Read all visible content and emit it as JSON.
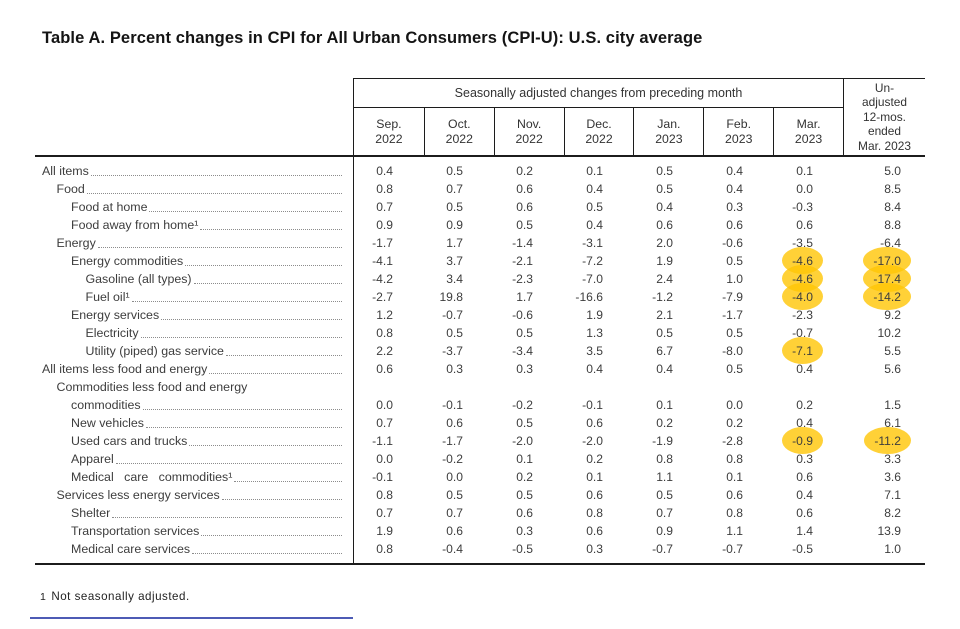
{
  "title": "Table A. Percent changes in CPI for All Urban Consumers (CPI-U): U.S. city average",
  "table": {
    "group_header": "Seasonally adjusted changes from preceding month",
    "month_columns": [
      [
        "Sep.",
        "2022"
      ],
      [
        "Oct.",
        "2022"
      ],
      [
        "Nov.",
        "2022"
      ],
      [
        "Dec.",
        "2022"
      ],
      [
        "Jan.",
        "2023"
      ],
      [
        "Feb.",
        "2023"
      ],
      [
        "Mar.",
        "2023"
      ]
    ],
    "last_column_lines": [
      "Un-",
      "adjusted",
      "12-mos.",
      "ended",
      "Mar. 2023"
    ],
    "rows": [
      {
        "label": "All items",
        "indent": 0,
        "values": [
          "0.4",
          "0.5",
          "0.2",
          "0.1",
          "0.5",
          "0.4",
          "0.1",
          "5.0"
        ],
        "highlight": []
      },
      {
        "label": "Food",
        "indent": 1,
        "values": [
          "0.8",
          "0.7",
          "0.6",
          "0.4",
          "0.5",
          "0.4",
          "0.0",
          "8.5"
        ],
        "highlight": []
      },
      {
        "label": "Food at home",
        "indent": 2,
        "values": [
          "0.7",
          "0.5",
          "0.6",
          "0.5",
          "0.4",
          "0.3",
          "-0.3",
          "8.4"
        ],
        "highlight": []
      },
      {
        "label": "Food away from home¹",
        "indent": 2,
        "values": [
          "0.9",
          "0.9",
          "0.5",
          "0.4",
          "0.6",
          "0.6",
          "0.6",
          "8.8"
        ],
        "highlight": []
      },
      {
        "label": "Energy",
        "indent": 1,
        "values": [
          "-1.7",
          "1.7",
          "-1.4",
          "-3.1",
          "2.0",
          "-0.6",
          "-3.5",
          "-6.4"
        ],
        "highlight": []
      },
      {
        "label": "Energy commodities",
        "indent": 2,
        "values": [
          "-4.1",
          "3.7",
          "-2.1",
          "-7.2",
          "1.9",
          "0.5",
          "-4.6",
          "-17.0"
        ],
        "highlight": [
          6,
          7
        ]
      },
      {
        "label": "Gasoline (all types)",
        "indent": 3,
        "values": [
          "-4.2",
          "3.4",
          "-2.3",
          "-7.0",
          "2.4",
          "1.0",
          "-4.6",
          "-17.4"
        ],
        "highlight": [
          6,
          7
        ]
      },
      {
        "label": "Fuel oil¹",
        "indent": 3,
        "values": [
          "-2.7",
          "19.8",
          "1.7",
          "-16.6",
          "-1.2",
          "-7.9",
          "-4.0",
          "-14.2"
        ],
        "highlight": [
          6,
          7
        ]
      },
      {
        "label": "Energy services",
        "indent": 2,
        "values": [
          "1.2",
          "-0.7",
          "-0.6",
          "1.9",
          "2.1",
          "-1.7",
          "-2.3",
          "9.2"
        ],
        "highlight": []
      },
      {
        "label": "Electricity",
        "indent": 3,
        "values": [
          "0.8",
          "0.5",
          "0.5",
          "1.3",
          "0.5",
          "0.5",
          "-0.7",
          "10.2"
        ],
        "highlight": []
      },
      {
        "label": "Utility (piped) gas service",
        "indent": 3,
        "values": [
          "2.2",
          "-3.7",
          "-3.4",
          "3.5",
          "6.7",
          "-8.0",
          "-7.1",
          "5.5"
        ],
        "highlight": [
          6
        ]
      },
      {
        "label": "All items less food and energy",
        "indent": 0,
        "values": [
          "0.6",
          "0.3",
          "0.3",
          "0.4",
          "0.4",
          "0.5",
          "0.4",
          "5.6"
        ],
        "highlight": []
      },
      {
        "label": "Commodities less food and energy",
        "label2": "commodities",
        "indent": 1,
        "indent2": 2,
        "values": [
          "0.0",
          "-0.1",
          "-0.2",
          "-0.1",
          "0.1",
          "0.0",
          "0.2",
          "1.5"
        ],
        "highlight": []
      },
      {
        "label": "New vehicles",
        "indent": 2,
        "values": [
          "0.7",
          "0.6",
          "0.5",
          "0.6",
          "0.2",
          "0.2",
          "0.4",
          "6.1"
        ],
        "highlight": []
      },
      {
        "label": "Used cars and trucks",
        "indent": 2,
        "values": [
          "-1.1",
          "-1.7",
          "-2.0",
          "-2.0",
          "-1.9",
          "-2.8",
          "-0.9",
          "-11.2"
        ],
        "highlight": [
          6,
          7
        ]
      },
      {
        "label": "Apparel",
        "indent": 2,
        "values": [
          "0.0",
          "-0.2",
          "0.1",
          "0.2",
          "0.8",
          "0.8",
          "0.3",
          "3.3"
        ],
        "highlight": []
      },
      {
        "label": "Medical care commodities¹",
        "indent": 2,
        "justify": true,
        "values": [
          "-0.1",
          "0.0",
          "0.2",
          "0.1",
          "1.1",
          "0.1",
          "0.6",
          "3.6"
        ],
        "highlight": []
      },
      {
        "label": "Services less energy services",
        "indent": 1,
        "values": [
          "0.8",
          "0.5",
          "0.5",
          "0.6",
          "0.5",
          "0.6",
          "0.4",
          "7.1"
        ],
        "highlight": []
      },
      {
        "label": "Shelter",
        "indent": 2,
        "values": [
          "0.7",
          "0.7",
          "0.6",
          "0.8",
          "0.7",
          "0.8",
          "0.6",
          "8.2"
        ],
        "highlight": []
      },
      {
        "label": "Transportation services",
        "indent": 2,
        "values": [
          "1.9",
          "0.6",
          "0.3",
          "0.6",
          "0.9",
          "1.1",
          "1.4",
          "13.9"
        ],
        "highlight": []
      },
      {
        "label": "Medical care services",
        "indent": 2,
        "values": [
          "0.8",
          "-0.4",
          "-0.5",
          "0.3",
          "-0.7",
          "-0.7",
          "-0.5",
          "1.0"
        ],
        "highlight": []
      }
    ]
  },
  "footnote": {
    "marker": "1",
    "text": "Not seasonally adjusted."
  },
  "colors": {
    "highlight": "#FFC605",
    "accent_line": "#3A49AD"
  }
}
